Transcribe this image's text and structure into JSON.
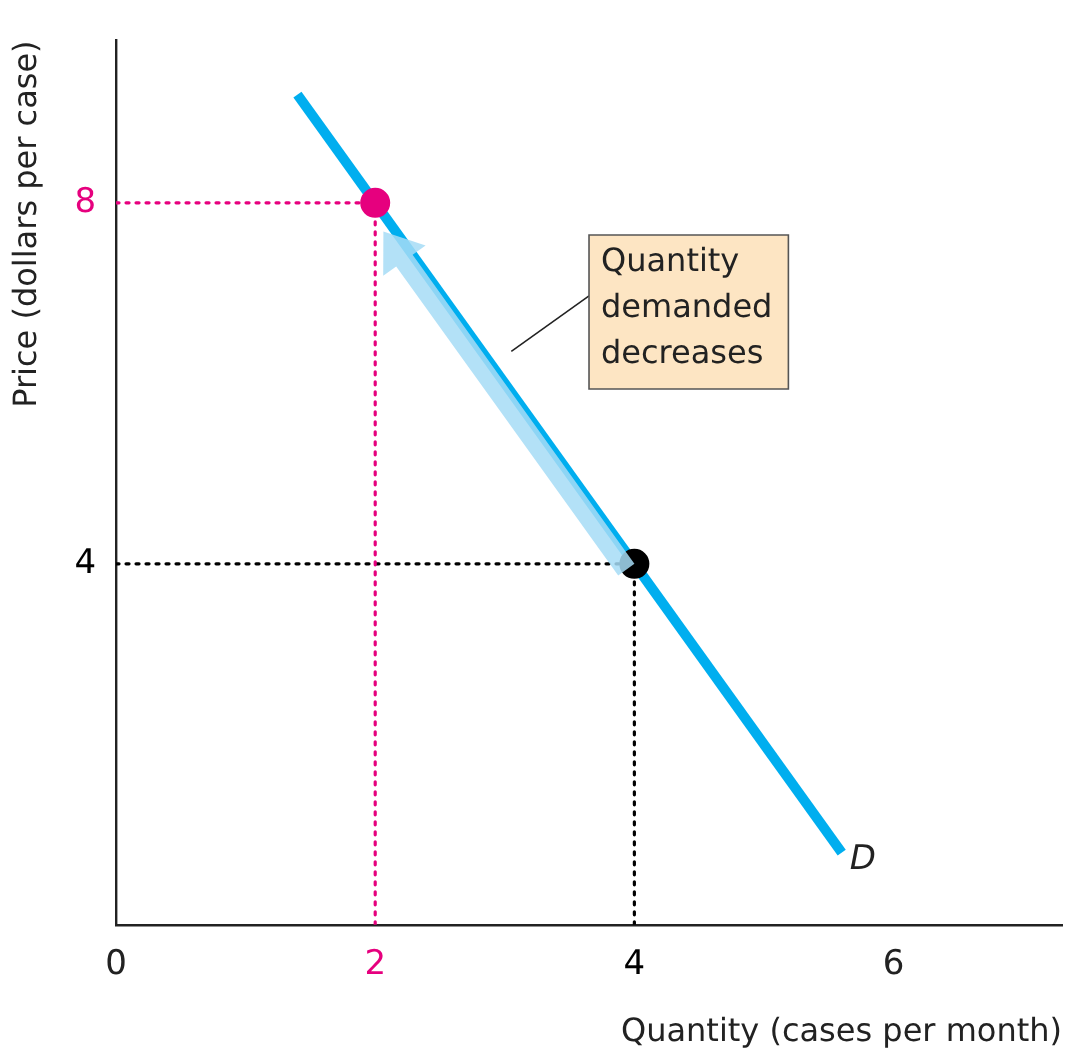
{
  "chart_data": {
    "type": "line",
    "xlabel": "Quantity (cases per month)",
    "ylabel": "Price (dollars per case)",
    "xlim": [
      0,
      7.3
    ],
    "ylim": [
      0,
      9.8
    ],
    "xticks": [
      0,
      2,
      4,
      6
    ],
    "yticks": [
      4,
      8
    ],
    "grid": false,
    "legend": false,
    "series": [
      {
        "name": "D",
        "color": "#00aeef",
        "x": [
          1.4,
          5.6
        ],
        "values": [
          9.2,
          0.8
        ]
      },
      {
        "color": "#e6007e",
        "line_style": "dotted",
        "marker": "none",
        "x": [
          0,
          2
        ],
        "values": [
          8,
          8
        ]
      },
      {
        "color": "#e6007e",
        "line_style": "dotted",
        "marker": "none",
        "x": [
          2,
          2
        ],
        "values": [
          0,
          8
        ]
      },
      {
        "color": "#000000",
        "line_style": "dotted",
        "marker": "none",
        "x": [
          0,
          4
        ],
        "values": [
          4,
          4
        ]
      },
      {
        "color": "#000000",
        "line_style": "dotted",
        "marker": "none",
        "x": [
          4,
          4
        ],
        "values": [
          0,
          4
        ]
      },
      {
        "type": "scatter",
        "marker": "circle",
        "x": [
          2,
          4
        ],
        "values": [
          8,
          4
        ],
        "colors": [
          "#e6007e",
          "#000000"
        ]
      }
    ],
    "annotations": [
      "Quantity demanded decreases"
    ]
  }
}
